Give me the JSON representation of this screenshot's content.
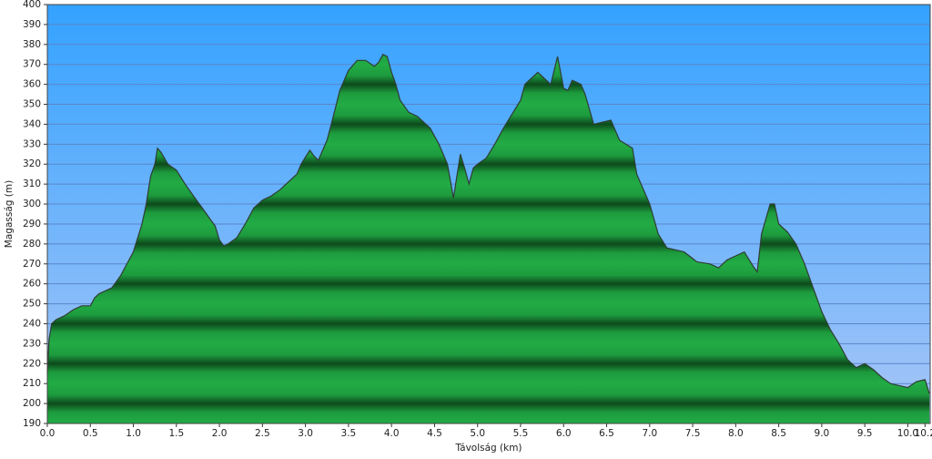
{
  "chart_data": {
    "type": "area",
    "x_label": "Távolság  (km)",
    "y_label": "Magasság (m)",
    "x": [
      0.0,
      0.02,
      0.05,
      0.1,
      0.2,
      0.3,
      0.4,
      0.5,
      0.55,
      0.6,
      0.75,
      0.85,
      0.95,
      1.0,
      1.1,
      1.15,
      1.2,
      1.25,
      1.28,
      1.32,
      1.4,
      1.5,
      1.6,
      1.7,
      1.8,
      1.9,
      1.95,
      2.0,
      2.05,
      2.1,
      2.2,
      2.3,
      2.4,
      2.5,
      2.6,
      2.7,
      2.8,
      2.9,
      2.95,
      3.05,
      3.1,
      3.15,
      3.25,
      3.3,
      3.4,
      3.5,
      3.6,
      3.7,
      3.8,
      3.85,
      3.9,
      3.95,
      4.0,
      4.05,
      4.1,
      4.2,
      4.3,
      4.45,
      4.55,
      4.65,
      4.7,
      4.72,
      4.8,
      4.85,
      4.9,
      4.95,
      5.0,
      5.1,
      5.2,
      5.3,
      5.4,
      5.5,
      5.55,
      5.6,
      5.7,
      5.8,
      5.85,
      5.93,
      6.0,
      6.05,
      6.1,
      6.2,
      6.25,
      6.35,
      6.45,
      6.55,
      6.65,
      6.8,
      6.85,
      6.9,
      7.0,
      7.1,
      7.2,
      7.4,
      7.55,
      7.7,
      7.8,
      7.9,
      8.0,
      8.1,
      8.2,
      8.25,
      8.3,
      8.4,
      8.45,
      8.5,
      8.6,
      8.7,
      8.8,
      8.9,
      9.0,
      9.1,
      9.2,
      9.3,
      9.4,
      9.5,
      9.6,
      9.7,
      9.8,
      9.9,
      10.0,
      10.1,
      10.2,
      10.25
    ],
    "series": [
      {
        "color": "#1fa040",
        "values": [
          215,
          232,
          240,
          242,
          244,
          247,
          249,
          249,
          253,
          255,
          258,
          264,
          272,
          276,
          290,
          300,
          314,
          320,
          328,
          326,
          320,
          317,
          310,
          304,
          298,
          292,
          289,
          282,
          279,
          280,
          283,
          290,
          298,
          302,
          304,
          307,
          311,
          315,
          320,
          327,
          324,
          322,
          332,
          340,
          357,
          367,
          372,
          372,
          369,
          371,
          375,
          374,
          366,
          360,
          352,
          346,
          344,
          338,
          330,
          320,
          308,
          303,
          325,
          318,
          310,
          318,
          320,
          323,
          330,
          338,
          345,
          352,
          360,
          362,
          366,
          362,
          360,
          374,
          358,
          357,
          362,
          360,
          355,
          340,
          341,
          342,
          332,
          328,
          315,
          310,
          300,
          285,
          278,
          276,
          271,
          270,
          268,
          272,
          274,
          276,
          269,
          266,
          285,
          300,
          300,
          290,
          286,
          280,
          270,
          258,
          246,
          237,
          230,
          222,
          218,
          220,
          217,
          213,
          210,
          209,
          208,
          211,
          212,
          205
        ]
      }
    ],
    "xlim": [
      0,
      10.26
    ],
    "ylim": [
      190,
      400
    ],
    "xticks": [
      {
        "value": 0,
        "label": "0.0"
      },
      0.5,
      {
        "value": 1,
        "label": "1.0"
      },
      1.5,
      {
        "value": 2,
        "label": "2.0"
      },
      2.5,
      {
        "value": 3,
        "label": "3.0"
      },
      3.5,
      {
        "value": 4,
        "label": "4.0"
      },
      4.5,
      {
        "value": 5,
        "label": "5.0"
      },
      5.5,
      {
        "value": 6,
        "label": "6.0"
      },
      6.5,
      {
        "value": 7,
        "label": "7.0"
      },
      7.5,
      {
        "value": 8,
        "label": "8.0"
      },
      8.5,
      {
        "value": 9,
        "label": "9.0"
      },
      9.5,
      {
        "value": 10,
        "label": "10.0"
      },
      10.2
    ],
    "yticks": [
      190,
      200,
      210,
      220,
      230,
      240,
      250,
      260,
      270,
      280,
      290,
      300,
      310,
      320,
      330,
      340,
      350,
      360,
      370,
      380,
      390,
      400
    ],
    "grid": true
  }
}
